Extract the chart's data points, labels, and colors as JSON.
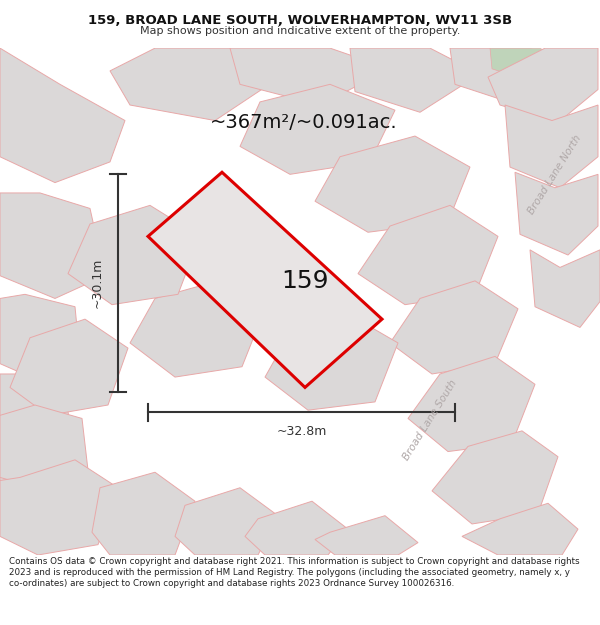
{
  "title_line1": "159, BROAD LANE SOUTH, WOLVERHAMPTON, WV11 3SB",
  "title_line2": "Map shows position and indicative extent of the property.",
  "footer": "Contains OS data © Crown copyright and database right 2021. This information is subject to Crown copyright and database rights 2023 and is reproduced with the permission of HM Land Registry. The polygons (including the associated geometry, namely x, y co-ordinates) are subject to Crown copyright and database rights 2023 Ordnance Survey 100026316.",
  "area_label": "~367m²/~0.091ac.",
  "width_label": "~32.8m",
  "height_label": "~30.1m",
  "number_label": "159",
  "map_bg": "#f9f7f7",
  "gray_fill": "#dbd8d8",
  "pink_edge": "#e8a8a8",
  "red_outline": "#dd0000",
  "prop_fill": "#e8e4e4",
  "road_label_color": "#b0a8a8",
  "dim_color": "#333333",
  "text_color": "#111111",
  "green_fill": "#bfd4ba",
  "title_fs": 9.5,
  "subtitle_fs": 8.0,
  "area_fs": 14,
  "num_fs": 18,
  "dim_fs": 9,
  "footer_fs": 6.3,
  "road_fs": 7.5
}
